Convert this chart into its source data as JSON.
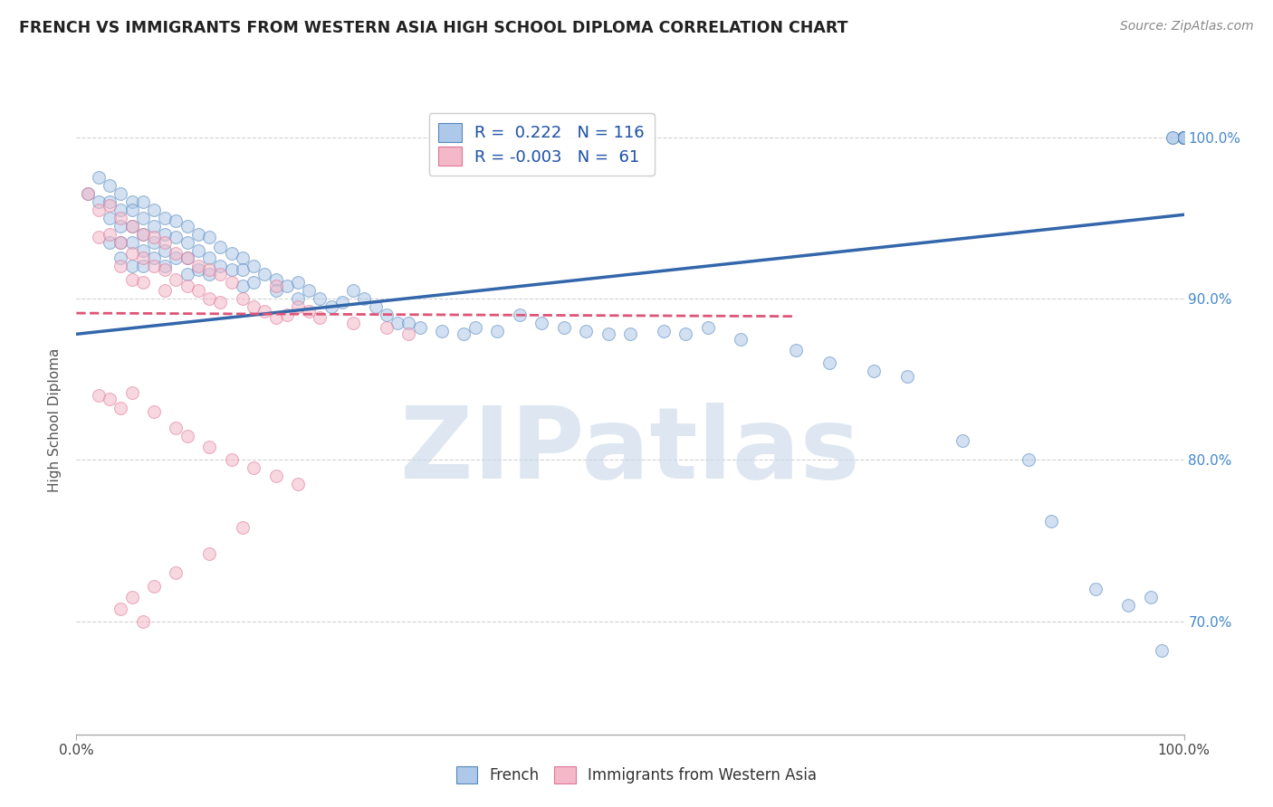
{
  "title": "FRENCH VS IMMIGRANTS FROM WESTERN ASIA HIGH SCHOOL DIPLOMA CORRELATION CHART",
  "source_text": "Source: ZipAtlas.com",
  "ylabel": "High School Diploma",
  "xlim": [
    0.0,
    1.0
  ],
  "ylim": [
    0.63,
    1.02
  ],
  "y_ticks": [
    0.7,
    0.8,
    0.9,
    1.0
  ],
  "y_tick_labels": [
    "70.0%",
    "80.0%",
    "90.0%",
    "100.0%"
  ],
  "blue_label": "French",
  "pink_label": "Immigrants from Western Asia",
  "R_blue": "0.222",
  "N_blue": "116",
  "R_pink": "-0.003",
  "N_pink": "61",
  "blue_color": "#adc8e8",
  "pink_color": "#f4b8c8",
  "blue_edge_color": "#5588bb",
  "pink_edge_color": "#dd7799",
  "blue_line_color": "#3366aa",
  "pink_line_color": "#dd5577",
  "watermark": "ZIPatlas",
  "watermark_color": "#c8d8e8",
  "background_color": "#ffffff",
  "grid_color": "#cccccc",
  "title_color": "#222222",
  "blue_trend_x": [
    0.0,
    1.0
  ],
  "blue_trend_y": [
    0.878,
    0.952
  ],
  "pink_trend_x": [
    0.0,
    0.65
  ],
  "pink_trend_y": [
    0.891,
    0.889
  ],
  "blue_x": [
    0.01,
    0.02,
    0.02,
    0.03,
    0.03,
    0.03,
    0.03,
    0.04,
    0.04,
    0.04,
    0.04,
    0.04,
    0.05,
    0.05,
    0.05,
    0.05,
    0.05,
    0.06,
    0.06,
    0.06,
    0.06,
    0.06,
    0.07,
    0.07,
    0.07,
    0.07,
    0.08,
    0.08,
    0.08,
    0.08,
    0.09,
    0.09,
    0.09,
    0.1,
    0.1,
    0.1,
    0.1,
    0.11,
    0.11,
    0.11,
    0.12,
    0.12,
    0.12,
    0.13,
    0.13,
    0.14,
    0.14,
    0.15,
    0.15,
    0.15,
    0.16,
    0.16,
    0.17,
    0.18,
    0.18,
    0.19,
    0.2,
    0.2,
    0.21,
    0.22,
    0.23,
    0.24,
    0.25,
    0.26,
    0.27,
    0.28,
    0.29,
    0.3,
    0.31,
    0.33,
    0.35,
    0.36,
    0.38,
    0.4,
    0.42,
    0.44,
    0.46,
    0.48,
    0.5,
    0.53,
    0.55,
    0.57,
    0.6,
    0.65,
    0.68,
    0.72,
    0.75,
    0.8,
    0.86,
    0.88,
    0.92,
    0.95,
    0.97,
    0.98,
    0.99,
    0.99,
    1.0,
    1.0,
    1.0,
    1.0,
    1.0,
    1.0,
    1.0,
    1.0,
    1.0,
    1.0,
    1.0,
    1.0,
    1.0,
    1.0,
    1.0,
    1.0,
    1.0,
    1.0,
    1.0,
    1.0,
    1.0,
    1.0
  ],
  "blue_y": [
    0.965,
    0.975,
    0.96,
    0.97,
    0.96,
    0.95,
    0.935,
    0.965,
    0.955,
    0.945,
    0.935,
    0.925,
    0.96,
    0.955,
    0.945,
    0.935,
    0.92,
    0.96,
    0.95,
    0.94,
    0.93,
    0.92,
    0.955,
    0.945,
    0.935,
    0.925,
    0.95,
    0.94,
    0.93,
    0.92,
    0.948,
    0.938,
    0.925,
    0.945,
    0.935,
    0.925,
    0.915,
    0.94,
    0.93,
    0.918,
    0.938,
    0.925,
    0.915,
    0.932,
    0.92,
    0.928,
    0.918,
    0.925,
    0.918,
    0.908,
    0.92,
    0.91,
    0.915,
    0.912,
    0.905,
    0.908,
    0.91,
    0.9,
    0.905,
    0.9,
    0.895,
    0.898,
    0.905,
    0.9,
    0.895,
    0.89,
    0.885,
    0.885,
    0.882,
    0.88,
    0.878,
    0.882,
    0.88,
    0.89,
    0.885,
    0.882,
    0.88,
    0.878,
    0.878,
    0.88,
    0.878,
    0.882,
    0.875,
    0.868,
    0.86,
    0.855,
    0.852,
    0.812,
    0.8,
    0.762,
    0.72,
    0.71,
    0.715,
    0.682,
    1.0,
    1.0,
    1.0,
    1.0,
    1.0,
    1.0,
    1.0,
    1.0,
    1.0,
    1.0,
    1.0,
    1.0,
    1.0,
    1.0,
    1.0,
    1.0,
    1.0,
    1.0,
    1.0,
    1.0,
    1.0,
    1.0,
    1.0,
    1.0
  ],
  "pink_x": [
    0.01,
    0.02,
    0.02,
    0.03,
    0.03,
    0.04,
    0.04,
    0.04,
    0.05,
    0.05,
    0.05,
    0.06,
    0.06,
    0.06,
    0.07,
    0.07,
    0.08,
    0.08,
    0.08,
    0.09,
    0.09,
    0.1,
    0.1,
    0.11,
    0.11,
    0.12,
    0.12,
    0.13,
    0.13,
    0.14,
    0.15,
    0.16,
    0.17,
    0.18,
    0.18,
    0.19,
    0.2,
    0.21,
    0.22,
    0.25,
    0.28,
    0.3,
    0.02,
    0.03,
    0.04,
    0.05,
    0.07,
    0.09,
    0.1,
    0.12,
    0.14,
    0.16,
    0.18,
    0.2,
    0.15,
    0.12,
    0.09,
    0.07,
    0.05,
    0.04,
    0.06
  ],
  "pink_y": [
    0.965,
    0.955,
    0.938,
    0.958,
    0.94,
    0.95,
    0.935,
    0.92,
    0.945,
    0.928,
    0.912,
    0.94,
    0.925,
    0.91,
    0.938,
    0.92,
    0.935,
    0.918,
    0.905,
    0.928,
    0.912,
    0.925,
    0.908,
    0.92,
    0.905,
    0.918,
    0.9,
    0.915,
    0.898,
    0.91,
    0.9,
    0.895,
    0.892,
    0.908,
    0.888,
    0.89,
    0.895,
    0.892,
    0.888,
    0.885,
    0.882,
    0.878,
    0.84,
    0.838,
    0.832,
    0.842,
    0.83,
    0.82,
    0.815,
    0.808,
    0.8,
    0.795,
    0.79,
    0.785,
    0.758,
    0.742,
    0.73,
    0.722,
    0.715,
    0.708,
    0.7
  ],
  "marker_size": 100,
  "marker_alpha": 0.55
}
